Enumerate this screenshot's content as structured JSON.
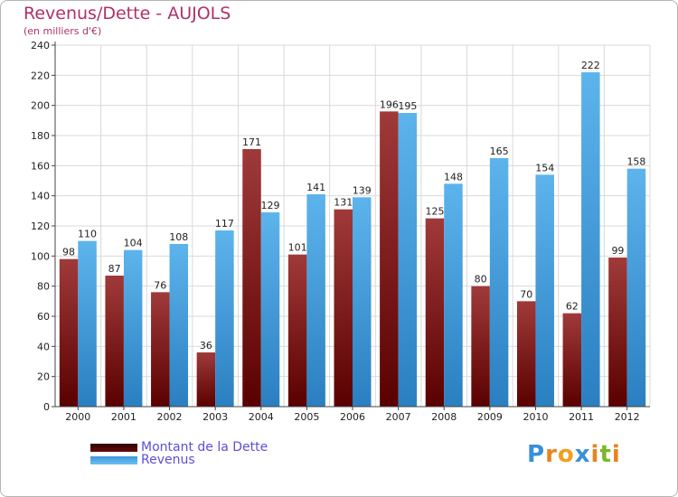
{
  "header": {
    "title": "Revenus/Dette - AUJOLS",
    "subtitle": "(en milliers d'€)"
  },
  "colors": {
    "debt_dark": "#5a0000",
    "debt_light": "#a03a3a",
    "revenue_dark": "#2a7fc0",
    "revenue_light": "#5db4ec",
    "title": "#b0306a",
    "legend_text": "#5b4fd8"
  },
  "logo": {
    "letters": [
      "P",
      "r",
      "o",
      "x",
      "i",
      "t",
      "i"
    ],
    "colors": [
      "#3a8fd8",
      "#e8841e",
      "#f0a020",
      "#3a8fd8",
      "#e8841e",
      "#7ab82a",
      "#e8841e"
    ]
  },
  "legend": [
    {
      "label": "Montant de la Dette",
      "color": "#6a0b0b"
    },
    {
      "label": "Revenus",
      "color": "#3b97db"
    }
  ],
  "chart_data": {
    "type": "bar",
    "title": "Revenus/Dette - AUJOLS",
    "ylabel": "(en milliers d'€)",
    "xlabel": "",
    "ylim": [
      0,
      240
    ],
    "yticks": [
      0,
      20,
      40,
      60,
      80,
      100,
      120,
      140,
      160,
      180,
      200,
      220,
      240
    ],
    "grid": true,
    "categories": [
      "2000",
      "2001",
      "2002",
      "2003",
      "2004",
      "2005",
      "2006",
      "2007",
      "2008",
      "2009",
      "2010",
      "2011",
      "2012"
    ],
    "series": [
      {
        "name": "Montant de la Dette",
        "values": [
          98,
          87,
          76,
          36,
          171,
          101,
          131,
          196,
          125,
          80,
          70,
          62,
          99
        ]
      },
      {
        "name": "Revenus",
        "values": [
          110,
          104,
          108,
          117,
          129,
          141,
          139,
          195,
          148,
          165,
          154,
          222,
          158
        ]
      }
    ]
  }
}
